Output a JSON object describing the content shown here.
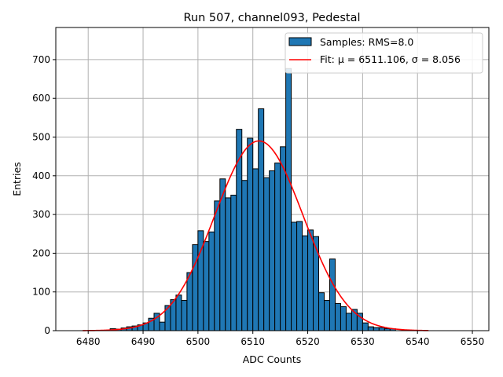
{
  "chart_data": {
    "type": "bar",
    "title": "Run 507, channel093, Pedestal",
    "xlabel": "ADC Counts",
    "ylabel": "Entries",
    "xlim": [
      6474.1,
      6553
    ],
    "ylim": [
      0,
      783
    ],
    "grid": true,
    "legend_position": "top-right",
    "xticks": [
      6480,
      6490,
      6500,
      6510,
      6520,
      6530,
      6540,
      6550
    ],
    "yticks": [
      0,
      100,
      200,
      300,
      400,
      500,
      600,
      700
    ],
    "histogram": {
      "name": "Samples: RMS=8.0",
      "color": "#1f77b4",
      "bin_start": 6484,
      "bin_width": 1,
      "values": [
        5,
        4,
        7,
        10,
        12,
        15,
        20,
        32,
        45,
        22,
        65,
        80,
        92,
        78,
        150,
        222,
        258,
        230,
        255,
        335,
        392,
        343,
        350,
        520,
        388,
        497,
        418,
        573,
        395,
        413,
        433,
        475,
        677,
        280,
        282,
        245,
        260,
        243,
        98,
        78,
        185,
        70,
        62,
        45,
        55,
        45,
        20,
        10,
        8,
        8,
        5,
        5
      ]
    },
    "fit": {
      "name": "Fit: μ = 6511.106, σ = 8.056",
      "color": "#ff0000",
      "mu": 6511.106,
      "sigma": 8.056,
      "amplitude": 490,
      "range": [
        6479,
        6542
      ]
    }
  }
}
